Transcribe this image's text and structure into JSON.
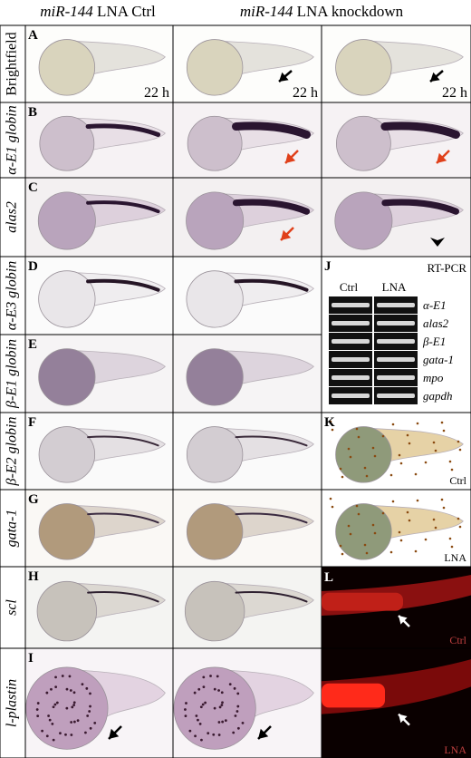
{
  "header": {
    "ctrl": {
      "gene": "miR-144",
      "label": "LNA Ctrl"
    },
    "knockdown": {
      "gene": "miR-144",
      "label": "LNA knockdown"
    }
  },
  "rows": [
    {
      "letter": "A",
      "label": "Brightfield",
      "time": "22 h"
    },
    {
      "letter": "B",
      "label": "α-E1 globin"
    },
    {
      "letter": "C",
      "label": "alas2"
    },
    {
      "letter": "D",
      "label": "α-E3 globin"
    },
    {
      "letter": "E",
      "label": "β-E1 globin"
    },
    {
      "letter": "F",
      "label": "β-E2 globin"
    },
    {
      "letter": "G",
      "label": "gata-1"
    },
    {
      "letter": "H",
      "label": "scl"
    },
    {
      "letter": "I",
      "label": "l-plastin"
    }
  ],
  "panel_j": {
    "letter": "J",
    "title": "RT-PCR",
    "columns": [
      "Ctrl",
      "LNA"
    ],
    "genes": [
      "α-E1",
      "alas2",
      "β-E1",
      "gata-1",
      "mpo",
      "gapdh"
    ]
  },
  "panel_k": {
    "letter": "K",
    "labels": [
      "Ctrl",
      "LNA"
    ]
  },
  "panel_l": {
    "letter": "L",
    "labels": [
      "Ctrl",
      "LNA"
    ]
  }
}
